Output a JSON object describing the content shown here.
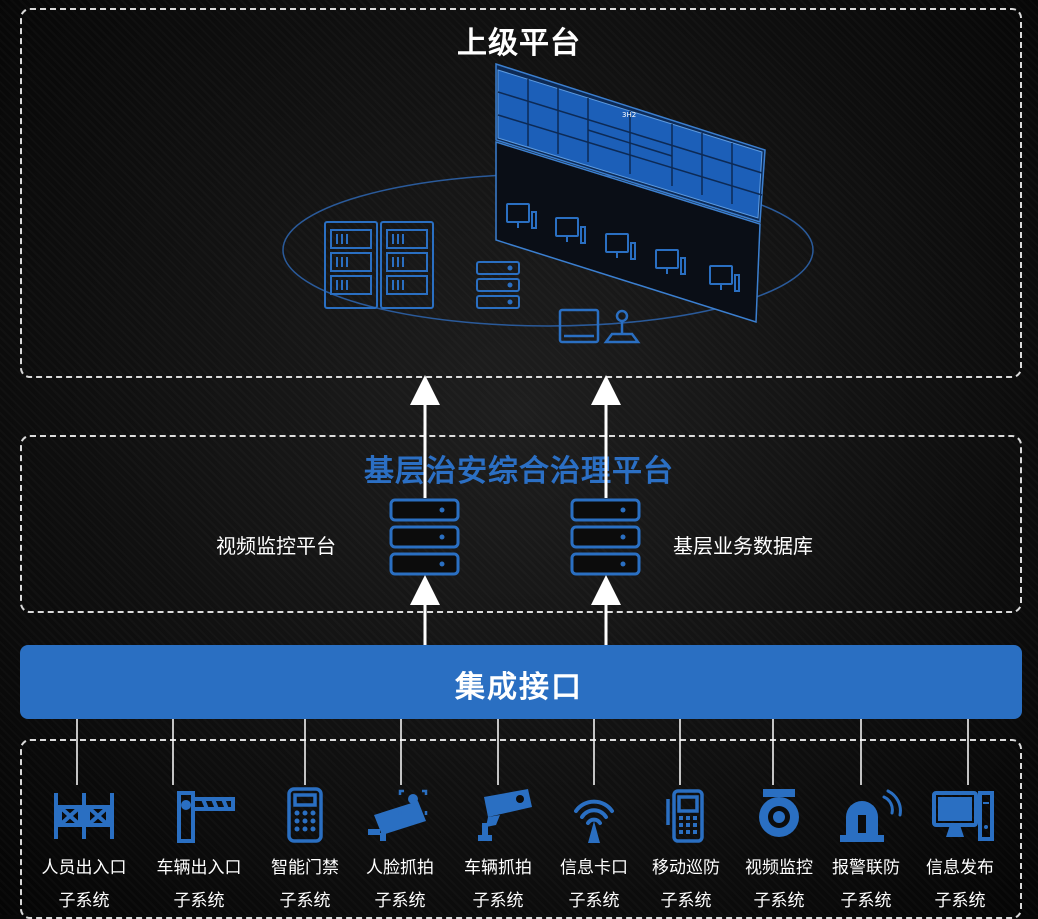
{
  "top_platform": {
    "title": "上级平台",
    "wall_label": "3H2"
  },
  "mid_platform": {
    "title": "基层治安综合治理平台",
    "left_label": "视频监控平台",
    "right_label": "基层业务数据库"
  },
  "integration": {
    "label": "集成接口"
  },
  "subsystem_suffix": "子系统",
  "subsystems": [
    {
      "name": "人员出入口",
      "icon": "turnstile-icon"
    },
    {
      "name": "车辆出入口",
      "icon": "barrier-gate-icon"
    },
    {
      "name": "智能门禁",
      "icon": "keypad-icon"
    },
    {
      "name": "人脸抓拍",
      "icon": "face-camera-icon"
    },
    {
      "name": "车辆抓拍",
      "icon": "cctv-camera-icon"
    },
    {
      "name": "信息卡口",
      "icon": "antenna-icon"
    },
    {
      "name": "移动巡防",
      "icon": "handheld-terminal-icon"
    },
    {
      "name": "视频监控",
      "icon": "dome-camera-icon"
    },
    {
      "name": "报警联防",
      "icon": "alarm-light-icon"
    },
    {
      "name": "信息发布",
      "icon": "desktop-computer-icon"
    }
  ],
  "colors": {
    "accent": "#2a6fc2",
    "title_blue": "#2b6fc4",
    "line": "#ffffff",
    "background": "#111111"
  }
}
